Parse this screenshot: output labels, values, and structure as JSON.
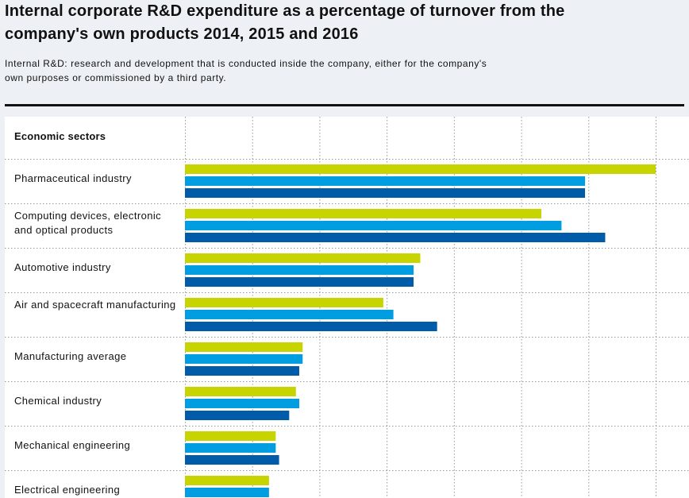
{
  "title": "Internal corporate R&D expenditure as a percentage of turnover from the company's own products 2014, 2015 and 2016",
  "subtitle": "Internal R&D: research and development that is conducted inside the company, either for the company's own purposes or commissioned by a third party.",
  "chart_data": {
    "type": "bar",
    "orientation": "horizontal",
    "category_header": "Economic sectors",
    "categories": [
      "Pharmaceutical industry",
      "Computing devices, electronic and optical products",
      "Automotive industry",
      "Air and spacecraft manufacturing",
      "Manufacturing average",
      "Chemical industry",
      "Mechanical engineering",
      "Electrical engineering"
    ],
    "series": [
      {
        "color": "#c8d400",
        "values": [
          14.0,
          10.6,
          7.0,
          5.9,
          3.5,
          3.3,
          2.7,
          2.5
        ]
      },
      {
        "color": "#009ee0",
        "values": [
          11.9,
          11.2,
          6.8,
          6.2,
          3.5,
          3.4,
          2.7,
          2.5
        ]
      },
      {
        "color": "#005ca9",
        "values": [
          11.9,
          12.5,
          6.8,
          7.5,
          3.4,
          3.1,
          2.8,
          null
        ]
      }
    ],
    "xlim": [
      0,
      14
    ],
    "grid": true,
    "tick_labels_shown": false
  }
}
